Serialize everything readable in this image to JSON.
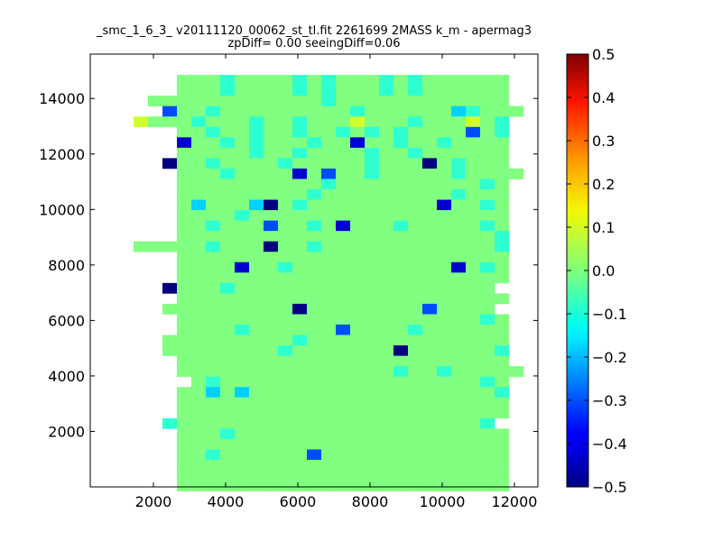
{
  "chart_data": {
    "type": "heatmap",
    "title": "_smc_1_6_3_ v20111120_00062_st_tl.fit 2261699 2MASS k_m - apermag3",
    "subtitle": "zpDiff= 0.00 seeingDiff=0.06",
    "xlabel": "",
    "ylabel": "",
    "xlim": [
      250,
      12650
    ],
    "ylim": [
      0,
      15600
    ],
    "x_ticks": [
      2000,
      4000,
      6000,
      8000,
      10000,
      12000
    ],
    "y_ticks": [
      2000,
      4000,
      6000,
      8000,
      10000,
      12000,
      14000
    ],
    "colorbar": {
      "colormap": "jet",
      "range": [
        -0.5,
        0.5
      ],
      "ticks": [
        0.5,
        0.4,
        0.3,
        0.2,
        0.1,
        0.0,
        -0.1,
        -0.2,
        -0.3,
        -0.4,
        -0.5
      ],
      "tick_labels": [
        "0.5",
        "0.4",
        "0.3",
        "0.2",
        "0.1",
        "0.0",
        "−0.1",
        "−0.2",
        "−0.3",
        "−0.4",
        "−0.5"
      ]
    },
    "grid": false,
    "cell_size": [
      400,
      500
    ],
    "rows_top_to_bottom": [
      "..............................",
      "..............................",
      "......GGG0GGGG0G0GGG0G0GGGGGG.",
      "......GGG0GGGG0G0GGG0G0GGGGGG.",
      "....GGGGGGGGGGGG0GGGGGGGGGGGG.",
      ".....BGG0GGGGGGGGG0GGGGGGC0GGG",
      "...YGGG0GGG0GG0GGGYGGG0GGGYG0.",
      "......GG0GG0GG0GG0G0G0GGGGBG0.",
      "......XGG0G0GGG0GGXGG0GG0GGGG.",
      "......GGGGG0GG0GGGG0GG0GGGGGG.",
      ".....NGG0GGGG0GGGGG0GGGNG0GGG.",
      "......GGG0GGGGXGBGG0GGGGG0GGGG",
      "......GGGGGGGGGG0GGGGGGGGGG0G.",
      "......GGGGGGGGG0GGGGGGGGG0GGG.",
      "......GCGGGCNG0GGGGGGGGGXGG0G.",
      "......GGGG0GGGGGGGGGGGGGGGGGG.",
      "......GG0GGGBGG0GXGGG0GGGGG0G.",
      "......GGGGGGGGGGGGGGGGGGGGGG0.",
      "...GGGGG0GGGNGG0GGGGGGGGGGGG0.",
      "......GGGGGGGGGGGGGGGGGGGGGGG.",
      "......GGGGXGG0GGGGGGGGGGGXG0G.",
      "......GGGGGGGGGGGGGGGGGGGGGGG.",
      ".....NGGG0GGGGGGGGGGGGGGGGGG..",
      "......GGGGGGGGGGGGGGGGGGGGGGG.",
      ".....GGGGGGGGGNGGGGGGGGBGGGG..",
      "......GGGGGGGGGGGGGGGGGGGGG0G.",
      "......GGGG0GGGGGGBGGGG0GGGGGG.",
      ".....GGGGGGGGG0GGGGGGGGGGGGGG.",
      ".....GGGGGGGG0GGGGGGGNGGGGGG0.",
      "......GGGGGGGGGGGGGGGGGGGGGGG.",
      "......GGGGGGGGGGGGGGG0GG0GGGGG",
      ".......G0GGGGGGGGGGGGGGGGGG0G.",
      "......GGCGCGGGGGGGGGGGGGGGGG0.",
      "......GGGGGGGGGGGGGGGGGGGGGGG.",
      "......GGGGGGGGGGGGGGGGGGGGGGG.",
      ".....0GGGGGGGGGGGGGGGGGGGGG0..",
      "......GGG0GGGGGGGGGGGGGGGGGGG.",
      "......GGGGGGGGGGGGGGGGGGGGGGG.",
      "......GG0GGGGGGBGGGGGGGGGGGGG.",
      "......GGGGGGGGGGGGGGGGGGGGGGG.",
      "......GGGGGGGGGGGGGGGGGGGGGGG.",
      "......GGGGGGGGGGGGGGGGGGGGGGG."
    ],
    "row_y_start": 15600,
    "col_x_start": 250,
    "cell_codes": {
      "N": -0.5,
      "X": -0.42,
      "B": -0.3,
      "C": -0.17,
      "0": -0.08,
      "G": 0.0,
      "g": 0.04,
      "Y": 0.08,
      "A": 0.14,
      "O": 0.22,
      "R": 0.35
    }
  }
}
